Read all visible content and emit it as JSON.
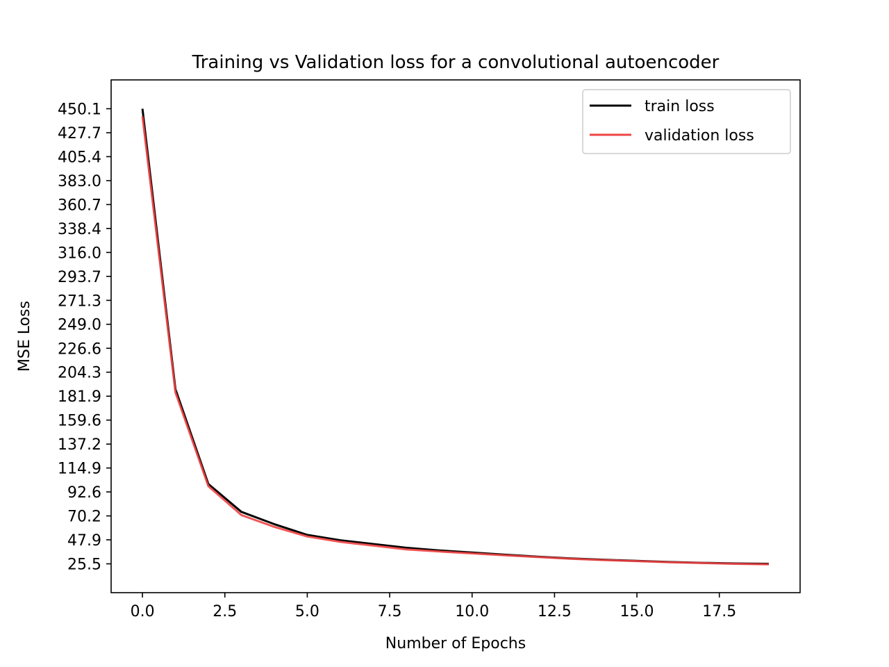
{
  "chart_data": {
    "type": "line",
    "title": "Training vs Validation loss for a convolutional autoencoder",
    "xlabel": "Number of Epochs",
    "ylabel": "MSE Loss",
    "xlim": [
      -0.95,
      19.95
    ],
    "ylim": [
      -1.4,
      477.0
    ],
    "x_ticks": [
      0.0,
      2.5,
      5.0,
      7.5,
      10.0,
      12.5,
      15.0,
      17.5
    ],
    "x_tick_labels": [
      "0.0",
      "2.5",
      "5.0",
      "7.5",
      "10.0",
      "12.5",
      "15.0",
      "17.5"
    ],
    "y_ticks": [
      25.5,
      47.9,
      70.2,
      92.6,
      114.9,
      137.2,
      159.6,
      181.9,
      204.3,
      226.6,
      249.0,
      271.3,
      293.7,
      316.0,
      338.4,
      360.7,
      383.0,
      405.4,
      427.7,
      450.1
    ],
    "y_tick_labels": [
      "25.5",
      "47.9",
      "70.2",
      "92.6",
      "114.9",
      "137.2",
      "159.6",
      "181.9",
      "204.3",
      "226.6",
      "249.0",
      "271.3",
      "293.7",
      "316.0",
      "338.4",
      "360.7",
      "383.0",
      "405.4",
      "427.7",
      "450.1"
    ],
    "grid": false,
    "legend_position": "top-right",
    "x": [
      0,
      1,
      2,
      3,
      4,
      5,
      6,
      7,
      8,
      9,
      10,
      11,
      12,
      13,
      14,
      15,
      16,
      17,
      18,
      19
    ],
    "series": [
      {
        "name": "train loss",
        "color": "#000000",
        "values": [
          450.1,
          188.5,
          100.0,
          74.0,
          62.5,
          52.5,
          47.5,
          44.0,
          40.5,
          38.0,
          36.0,
          34.0,
          32.2,
          30.5,
          29.3,
          28.2,
          27.2,
          26.4,
          25.8,
          25.5
        ]
      },
      {
        "name": "validation loss",
        "color": "#ee4444",
        "values": [
          443.0,
          185.5,
          98.0,
          71.0,
          60.0,
          51.0,
          46.0,
          42.5,
          39.0,
          37.0,
          35.2,
          33.5,
          31.8,
          30.2,
          29.0,
          28.0,
          27.0,
          26.2,
          25.5,
          25.0
        ]
      }
    ]
  }
}
